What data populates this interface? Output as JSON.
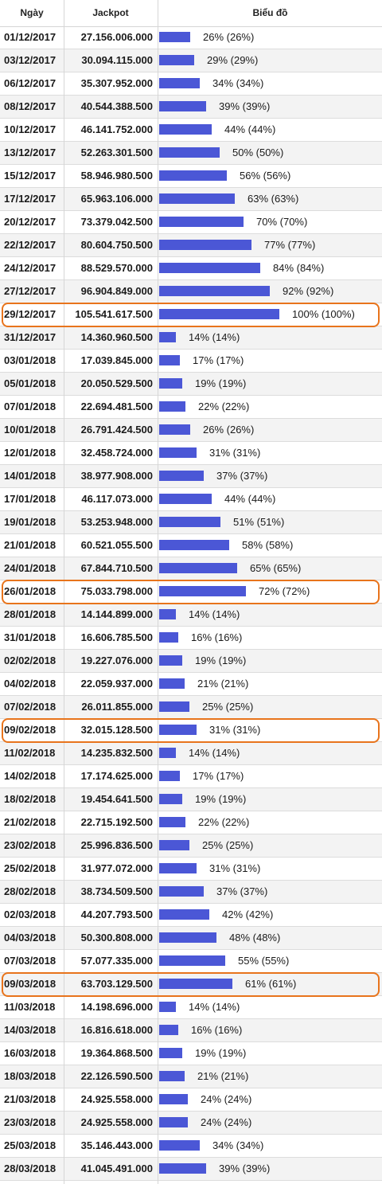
{
  "table": {
    "headers": {
      "date": "Ngày",
      "jackpot": "Jackpot",
      "chart": "Biểu đồ"
    },
    "highlighted_dates": [
      "29/12/2017",
      "26/01/2018",
      "09/02/2018",
      "09/03/2018"
    ],
    "colors": {
      "bar": "#4b57d6",
      "highlight": "#e8741c",
      "stripe": "#f3f3f3"
    }
  },
  "chart_data": {
    "type": "bar",
    "categories": [
      "01/12/2017",
      "03/12/2017",
      "06/12/2017",
      "08/12/2017",
      "10/12/2017",
      "13/12/2017",
      "15/12/2017",
      "17/12/2017",
      "20/12/2017",
      "22/12/2017",
      "24/12/2017",
      "27/12/2017",
      "29/12/2017",
      "31/12/2017",
      "03/01/2018",
      "05/01/2018",
      "07/01/2018",
      "10/01/2018",
      "12/01/2018",
      "14/01/2018",
      "17/01/2018",
      "19/01/2018",
      "21/01/2018",
      "24/01/2018",
      "26/01/2018",
      "28/01/2018",
      "31/01/2018",
      "02/02/2018",
      "04/02/2018",
      "07/02/2018",
      "09/02/2018",
      "11/02/2018",
      "14/02/2018",
      "18/02/2018",
      "21/02/2018",
      "23/02/2018",
      "25/02/2018",
      "28/02/2018",
      "02/03/2018",
      "04/03/2018",
      "07/03/2018",
      "09/03/2018",
      "11/03/2018",
      "14/03/2018",
      "16/03/2018",
      "18/03/2018",
      "21/03/2018",
      "23/03/2018",
      "25/03/2018",
      "28/03/2018"
    ],
    "jackpot_labels": [
      "27.156.006.000",
      "30.094.115.000",
      "35.307.952.000",
      "40.544.388.500",
      "46.141.752.000",
      "52.263.301.500",
      "58.946.980.500",
      "65.963.106.000",
      "73.379.042.500",
      "80.604.750.500",
      "88.529.570.000",
      "96.904.849.000",
      "105.541.617.500",
      "14.360.960.500",
      "17.039.845.000",
      "20.050.529.500",
      "22.694.481.500",
      "26.791.424.500",
      "32.458.724.000",
      "38.977.908.000",
      "46.117.073.000",
      "53.253.948.000",
      "60.521.055.500",
      "67.844.710.500",
      "75.033.798.000",
      "14.144.899.000",
      "16.606.785.500",
      "19.227.076.000",
      "22.059.937.000",
      "26.011.855.000",
      "32.015.128.500",
      "14.235.832.500",
      "17.174.625.000",
      "19.454.641.500",
      "22.715.192.500",
      "25.996.836.500",
      "31.977.072.000",
      "38.734.509.500",
      "44.207.793.500",
      "50.300.808.000",
      "57.077.335.000",
      "63.703.129.500",
      "14.198.696.000",
      "16.816.618.000",
      "19.364.868.500",
      "22.126.590.500",
      "24.925.558.000",
      "24.925.558.000",
      "35.146.443.000",
      "41.045.491.000"
    ],
    "values": [
      26,
      29,
      34,
      39,
      44,
      50,
      56,
      63,
      70,
      77,
      84,
      92,
      100,
      14,
      17,
      19,
      22,
      26,
      31,
      37,
      44,
      51,
      58,
      65,
      72,
      14,
      16,
      19,
      21,
      25,
      31,
      14,
      17,
      19,
      22,
      25,
      31,
      37,
      42,
      48,
      55,
      61,
      14,
      16,
      19,
      21,
      24,
      24,
      34,
      39
    ],
    "pct_labels": [
      "26% (26%)",
      "29% (29%)",
      "34% (34%)",
      "39% (39%)",
      "44% (44%)",
      "50% (50%)",
      "56% (56%)",
      "63% (63%)",
      "70% (70%)",
      "77% (77%)",
      "84% (84%)",
      "92% (92%)",
      "100% (100%)",
      "14% (14%)",
      "17% (17%)",
      "19% (19%)",
      "22% (22%)",
      "26% (26%)",
      "31% (31%)",
      "37% (37%)",
      "44% (44%)",
      "51% (51%)",
      "58% (58%)",
      "65% (65%)",
      "72% (72%)",
      "14% (14%)",
      "16% (16%)",
      "19% (19%)",
      "21% (21%)",
      "25% (25%)",
      "31% (31%)",
      "14% (14%)",
      "17% (17%)",
      "19% (19%)",
      "22% (22%)",
      "25% (25%)",
      "31% (31%)",
      "37% (37%)",
      "42% (42%)",
      "48% (48%)",
      "55% (55%)",
      "61% (61%)",
      "14% (14%)",
      "16% (16%)",
      "19% (19%)",
      "21% (21%)",
      "24% (24%)",
      "24% (24%)",
      "34% (34%)",
      "39% (39%)"
    ],
    "xlim": [
      0,
      100
    ]
  }
}
